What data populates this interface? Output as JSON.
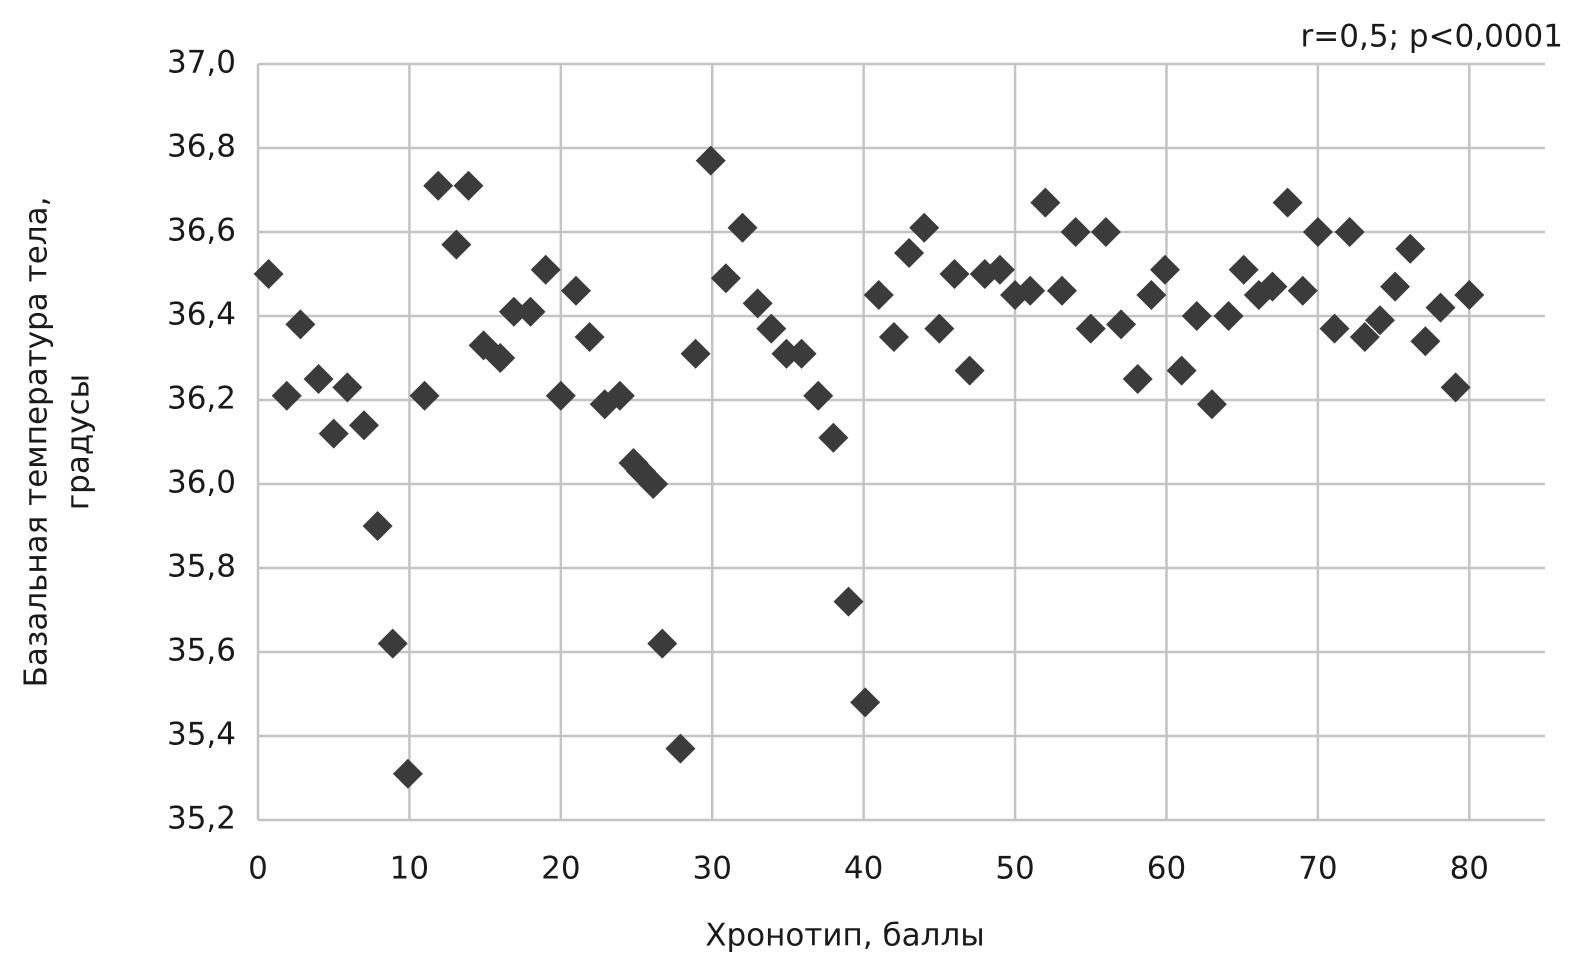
{
  "chart_data": {
    "type": "scatter",
    "annotation": "r=0,5; p<0,0001",
    "x_label": "Хронотип, баллы",
    "y_label": [
      "Базальная температура тела,",
      "градусы"
    ],
    "color": "#3b3b3b",
    "marker": "diamond",
    "grid": true,
    "xlim": [
      0,
      85
    ],
    "xticks": [
      0,
      10,
      20,
      30,
      40,
      50,
      60,
      70,
      80
    ],
    "ylim": [
      35.2,
      37.0
    ],
    "yticks": [
      {
        "value": 35.2,
        "label": "35,2"
      },
      {
        "value": 35.4,
        "label": "35,4"
      },
      {
        "value": 35.6,
        "label": "35,6"
      },
      {
        "value": 35.8,
        "label": "35,8"
      },
      {
        "value": 36.0,
        "label": "36,0"
      },
      {
        "value": 36.2,
        "label": "36,2"
      },
      {
        "value": 36.4,
        "label": "36,4"
      },
      {
        "value": 36.6,
        "label": "36,6"
      },
      {
        "value": 36.8,
        "label": "36,8"
      },
      {
        "value": 37.0,
        "label": "37,0"
      }
    ],
    "x": [
      0.7,
      1.9,
      2.8,
      4.0,
      5.0,
      5.9,
      7.0,
      7.9,
      8.9,
      9.9,
      11.0,
      11.9,
      13.1,
      13.9,
      14.9,
      16.0,
      16.9,
      18.0,
      19.0,
      20.0,
      21.0,
      21.9,
      22.9,
      23.9,
      24.8,
      25.3,
      26.1,
      26.7,
      27.9,
      28.9,
      29.9,
      30.9,
      32.0,
      33.0,
      33.9,
      34.9,
      35.9,
      37.0,
      38.0,
      39.0,
      40.1,
      41.0,
      42.0,
      43.0,
      44.0,
      45.0,
      46.0,
      47.0,
      48.0,
      49.0,
      50.0,
      51.0,
      52.0,
      53.1,
      54.0,
      55.0,
      56.0,
      57.0,
      58.1,
      59.0,
      59.9,
      61.0,
      62.0,
      63.0,
      64.1,
      65.1,
      66.1,
      67.0,
      68.0,
      69.0,
      70.0,
      71.1,
      72.1,
      73.1,
      74.1,
      75.1,
      76.1,
      77.1,
      78.1,
      79.1,
      80.0
    ],
    "values": [
      36.5,
      36.21,
      36.38,
      36.25,
      36.12,
      36.23,
      36.14,
      35.9,
      35.62,
      35.31,
      36.21,
      36.71,
      36.57,
      36.71,
      36.33,
      36.3,
      36.41,
      36.41,
      36.51,
      36.21,
      36.46,
      36.35,
      36.19,
      36.21,
      36.05,
      36.03,
      36.0,
      35.62,
      35.37,
      36.31,
      36.77,
      36.49,
      36.61,
      36.43,
      36.37,
      36.31,
      36.31,
      36.21,
      36.11,
      35.72,
      35.48,
      36.45,
      36.35,
      36.55,
      36.61,
      36.37,
      36.5,
      36.27,
      36.5,
      36.51,
      36.45,
      36.46,
      36.67,
      36.46,
      36.6,
      36.37,
      36.6,
      36.38,
      36.25,
      36.45,
      36.51,
      36.27,
      36.4,
      36.19,
      36.4,
      36.51,
      36.45,
      36.47,
      36.67,
      36.46,
      36.6,
      36.37,
      36.6,
      36.35,
      36.39,
      36.47,
      36.56,
      36.34,
      36.42,
      36.23,
      36.45
    ]
  }
}
